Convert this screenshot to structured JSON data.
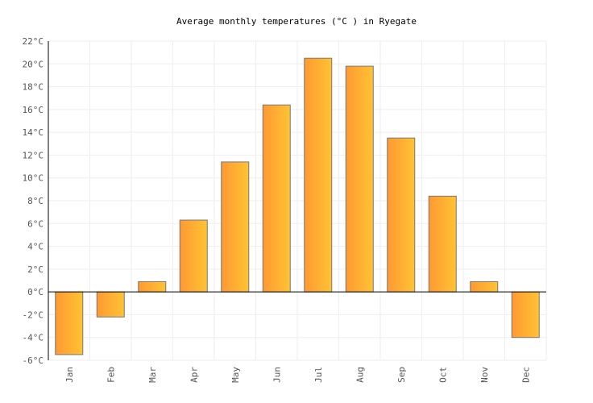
{
  "chart_data": {
    "type": "bar",
    "title": "Average monthly temperatures (°C ) in Ryegate",
    "categories": [
      "Jan",
      "Feb",
      "Mar",
      "Apr",
      "May",
      "Jun",
      "Jul",
      "Aug",
      "Sep",
      "Oct",
      "Nov",
      "Dec"
    ],
    "values": [
      -5.5,
      -2.2,
      0.9,
      6.3,
      11.4,
      16.4,
      20.5,
      19.8,
      13.5,
      8.4,
      0.9,
      -4.0
    ],
    "unit": "°C",
    "ylim": [
      -6,
      22
    ],
    "yticks": [
      -6,
      -4,
      -2,
      0,
      2,
      4,
      6,
      8,
      10,
      12,
      14,
      16,
      18,
      20,
      22
    ],
    "grid": true,
    "colors": {
      "bar_left": "#ff9933",
      "bar_right": "#ffc333",
      "bar_stroke": "#777777",
      "grid": "#eeeeee"
    }
  }
}
